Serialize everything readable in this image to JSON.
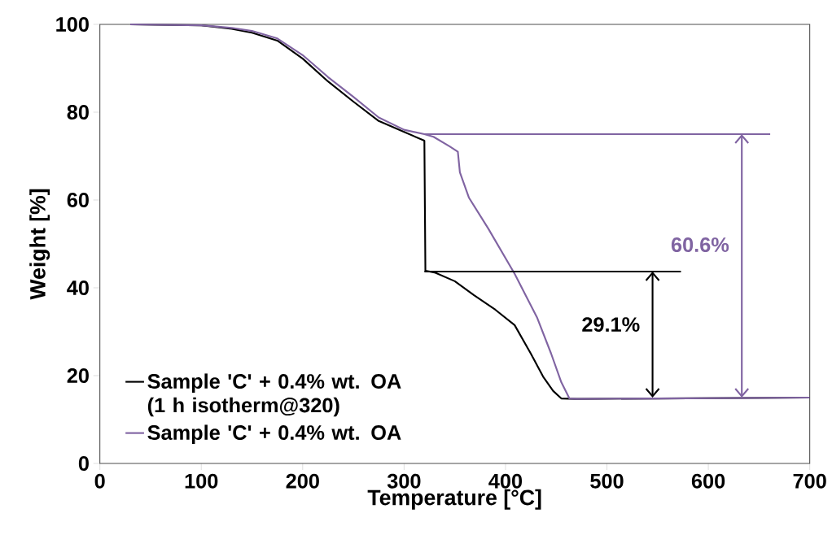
{
  "chart_data": {
    "type": "line",
    "xlabel": "Temperature [°C]",
    "ylabel": "Weight [%]",
    "xlim": [
      0,
      700
    ],
    "ylim": [
      0,
      100
    ],
    "xticks": [
      0,
      100,
      200,
      300,
      400,
      500,
      600,
      700
    ],
    "yticks": [
      0,
      20,
      40,
      60,
      80,
      100
    ],
    "grid": false,
    "legend": "bottom left",
    "series": [
      {
        "name": "Sample 'C' + 0.4% wt. OA (1 h isotherm@320)",
        "color": "#000000",
        "x": [
          30,
          100,
          130,
          150,
          175,
          200,
          225,
          250,
          275,
          300,
          320,
          321,
          330,
          350,
          369,
          390,
          409,
          425,
          437,
          447,
          455,
          470,
          550,
          700
        ],
        "values": [
          100,
          99.8,
          99,
          98.1,
          96.3,
          92.2,
          87,
          82.4,
          78,
          75.5,
          73.5,
          43.9,
          43.5,
          41.5,
          38.3,
          35,
          31.5,
          25,
          19.8,
          16.5,
          14.8,
          14.7,
          14.8,
          15
        ]
      },
      {
        "name": "Sample 'C' + 0.4% wt. OA",
        "color": "#8064a2",
        "x": [
          30,
          100,
          130,
          150,
          175,
          200,
          225,
          250,
          275,
          300,
          320,
          329,
          345,
          353,
          355,
          364,
          383,
          409,
          431,
          445,
          455,
          463,
          470,
          550,
          700
        ],
        "values": [
          100,
          99.8,
          99.2,
          98.5,
          96.8,
          93,
          88,
          83.5,
          78.8,
          76,
          75,
          74.4,
          72.2,
          71,
          66.3,
          60.5,
          53.5,
          43.2,
          33.3,
          25,
          18.5,
          14.8,
          14.7,
          14.8,
          15
        ]
      },
      {
        "color": "#000000",
        "x": [
          320,
          573
        ],
        "values": [
          43.7,
          43.7
        ]
      },
      {
        "color": "#8064a2",
        "x": [
          320,
          661
        ],
        "values": [
          75,
          75
        ]
      }
    ],
    "annotations": [
      "29.1%",
      "60.6%"
    ]
  }
}
